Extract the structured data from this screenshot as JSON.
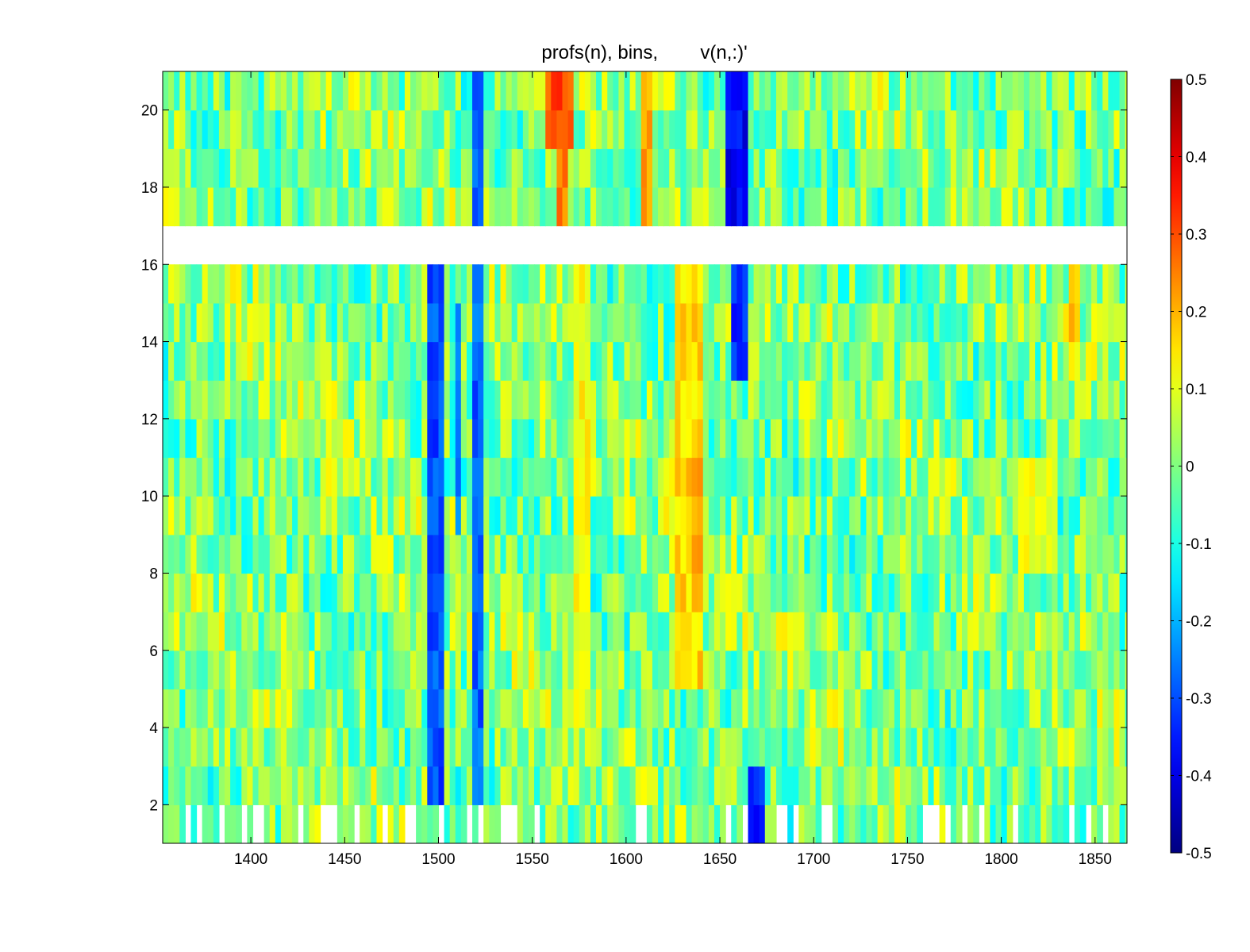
{
  "figure": {
    "title": "profs(n), bins,        v(n,:)'"
  },
  "colors": {
    "background": "#ffffff",
    "axis": "#000000",
    "missing_data": "#ffffff",
    "colormap": "jet"
  },
  "chart_data": {
    "type": "heatmap",
    "title": "profs(n), bins,        v(n,:)'",
    "xlabel": "",
    "ylabel": "",
    "xlim": [
      1353,
      1867
    ],
    "ylim": [
      1,
      21
    ],
    "x_ticks": [
      1400,
      1450,
      1500,
      1550,
      1600,
      1650,
      1700,
      1750,
      1800,
      1850
    ],
    "x_tick_labels": [
      "1400",
      "1450",
      "1500",
      "1550",
      "1600",
      "1650",
      "1700",
      "1750",
      "1800",
      "1850"
    ],
    "y_ticks": [
      2,
      4,
      6,
      8,
      10,
      12,
      14,
      16,
      18,
      20
    ],
    "y_tick_labels": [
      "2",
      "4",
      "6",
      "8",
      "10",
      "12",
      "14",
      "16",
      "18",
      "20"
    ],
    "rows": [
      1,
      2,
      3,
      4,
      5,
      6,
      7,
      8,
      9,
      10,
      11,
      12,
      13,
      14,
      15,
      16,
      17,
      18,
      19,
      20
    ],
    "missing_rows": [
      16
    ],
    "colormap": "jet",
    "clim": [
      -0.5,
      0.5
    ],
    "colorbar": {
      "position": "right",
      "ticks": [
        0.5,
        0.4,
        0.3,
        0.2,
        0.1,
        0,
        -0.1,
        -0.2,
        -0.3,
        -0.4,
        -0.5
      ],
      "tick_labels": [
        "0.5",
        "0.4",
        "0.3",
        "0.2",
        "0.1",
        "0",
        "-0.1",
        "-0.2",
        "-0.3",
        "-0.4",
        "-0.5"
      ]
    },
    "features": [
      {
        "x": [
          1493,
          1502
        ],
        "y": [
          2,
          16
        ],
        "value": -0.3
      },
      {
        "x": [
          1508,
          1512
        ],
        "y": [
          9,
          15
        ],
        "value": -0.25
      },
      {
        "x": [
          1518,
          1524
        ],
        "y": [
          2,
          21
        ],
        "value": -0.28
      },
      {
        "x": [
          1557,
          1572
        ],
        "y": [
          19,
          21
        ],
        "value": 0.3
      },
      {
        "x": [
          1563,
          1570
        ],
        "y": [
          17,
          19
        ],
        "value": 0.25
      },
      {
        "x": [
          1572,
          1582
        ],
        "y": [
          5,
          16
        ],
        "value": 0.12
      },
      {
        "x": [
          1608,
          1613
        ],
        "y": [
          17,
          21
        ],
        "value": 0.2
      },
      {
        "x": [
          1625,
          1641
        ],
        "y": [
          5,
          16
        ],
        "value": 0.16
      },
      {
        "x": [
          1634,
          1641
        ],
        "y": [
          8,
          11
        ],
        "value": 0.22
      },
      {
        "x": [
          1654,
          1666
        ],
        "y": [
          16,
          21
        ],
        "value": -0.38
      },
      {
        "x": [
          1657,
          1665
        ],
        "y": [
          13,
          16
        ],
        "value": -0.32
      },
      {
        "x": [
          1664,
          1675
        ],
        "y": [
          1,
          3
        ],
        "value": -0.35
      },
      {
        "x": [
          1835,
          1843
        ],
        "y": [
          14,
          16
        ],
        "value": 0.2
      },
      {
        "x": [
          1810,
          1830
        ],
        "y": [
          8,
          11
        ],
        "value": 0.1
      }
    ]
  }
}
